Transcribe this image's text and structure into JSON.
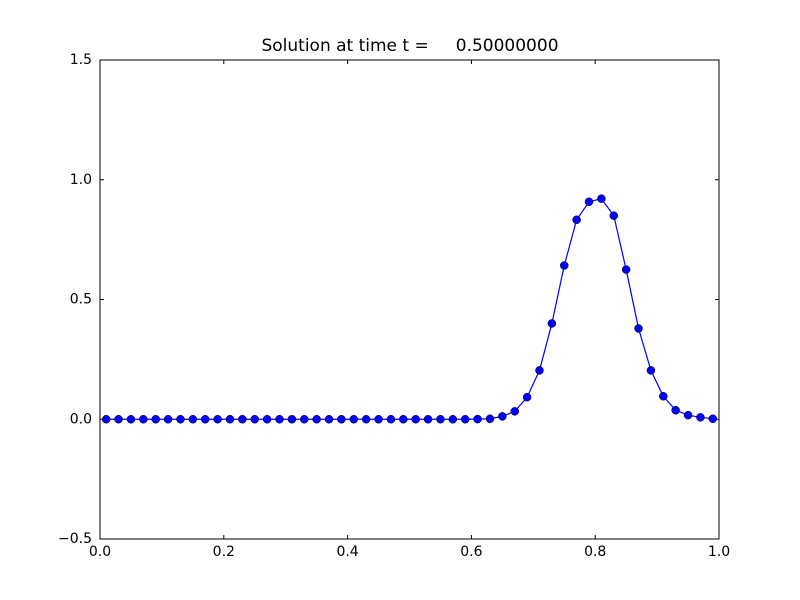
{
  "chart_data": {
    "type": "line",
    "title": "Solution at time t =     0.50000000",
    "x": [
      0.01,
      0.03,
      0.05,
      0.07,
      0.09,
      0.11,
      0.13,
      0.15,
      0.17,
      0.19,
      0.21,
      0.23,
      0.25,
      0.27,
      0.29,
      0.31,
      0.33,
      0.35,
      0.37,
      0.39,
      0.41,
      0.43,
      0.45,
      0.47,
      0.49,
      0.51,
      0.53,
      0.55,
      0.57,
      0.59,
      0.61,
      0.63,
      0.65,
      0.67,
      0.69,
      0.71,
      0.73,
      0.75,
      0.77,
      0.79,
      0.81,
      0.83,
      0.85,
      0.87,
      0.89,
      0.91,
      0.93,
      0.95,
      0.97,
      0.99
    ],
    "series": [
      {
        "color": "#0000ff",
        "values": [
          0,
          0,
          0,
          0,
          0,
          0,
          0,
          0,
          0,
          0,
          0,
          0,
          0,
          0,
          0,
          0,
          0,
          0,
          0,
          0,
          0,
          0,
          0,
          0,
          0,
          0,
          0,
          0,
          0,
          0,
          0.0005,
          0.002,
          0.012,
          0.033,
          0.092,
          0.204,
          0.4,
          0.642,
          0.833,
          0.908,
          0.921,
          0.85,
          0.625,
          0.379,
          0.204,
          0.096,
          0.0375,
          0.017,
          0.008,
          0.002
        ]
      }
    ],
    "xlim": [
      0,
      1
    ],
    "ylim": [
      -0.5,
      1.5
    ],
    "xticks": [
      {
        "value": 0,
        "label": "0.0"
      },
      0.2,
      0.4,
      0.6,
      0.8,
      {
        "value": 1,
        "label": "1.0"
      }
    ],
    "yticks": [
      {
        "value": -0.5,
        "label": "−0.5"
      },
      {
        "value": 0,
        "label": "0.0"
      },
      0.5,
      {
        "value": 1,
        "label": "1.0"
      },
      {
        "value": 1.5,
        "label": "1.5"
      }
    ]
  }
}
